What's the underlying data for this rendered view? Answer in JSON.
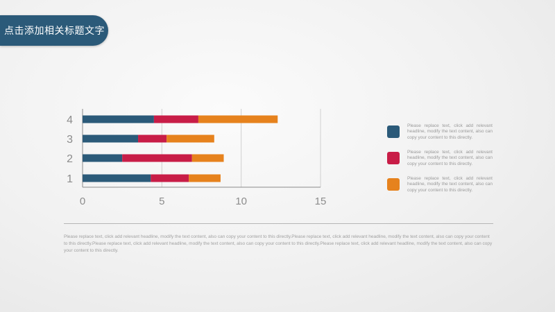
{
  "header": {
    "title": "点击添加相关标题文字"
  },
  "chart_data": {
    "type": "bar",
    "orientation": "horizontal",
    "stacked": true,
    "categories": [
      "1",
      "2",
      "3",
      "4"
    ],
    "series": [
      {
        "color": "#2b5a79",
        "values": [
          4.3,
          2.5,
          3.5,
          4.5
        ]
      },
      {
        "color": "#c81d47",
        "values": [
          2.4,
          4.4,
          1.8,
          2.8
        ]
      },
      {
        "color": "#e6821d",
        "values": [
          2.0,
          2.0,
          3.0,
          5.0
        ]
      }
    ],
    "xlim": [
      0,
      15
    ],
    "x_ticks": [
      "0",
      "5",
      "10",
      "15"
    ],
    "grid": "vertical"
  },
  "legend": {
    "items": [
      {
        "color": "#2b5a79",
        "text": "Please replace text, click add relevant headline, modify the text content, also can copy your content to this directly."
      },
      {
        "color": "#c81d47",
        "text": "Please replace text, click add relevant headline, modify the text content, also can copy your content to this directly."
      },
      {
        "color": "#e6821d",
        "text": "Please replace text, click add relevant headline, modify the text content, also can copy your content to this directly."
      }
    ]
  },
  "footer": {
    "text": "Please replace text, click add relevant headline, modify the text content, also can copy your content to this directly.Please replace text, click add relevant headline, modify the text content, also can copy your content to this directly.Please replace text, click add relevant headline, modify the text content, also can copy your content to this directly.Please replace text, click add relevant headline, modify the text content, also can copy your content to this directly."
  }
}
